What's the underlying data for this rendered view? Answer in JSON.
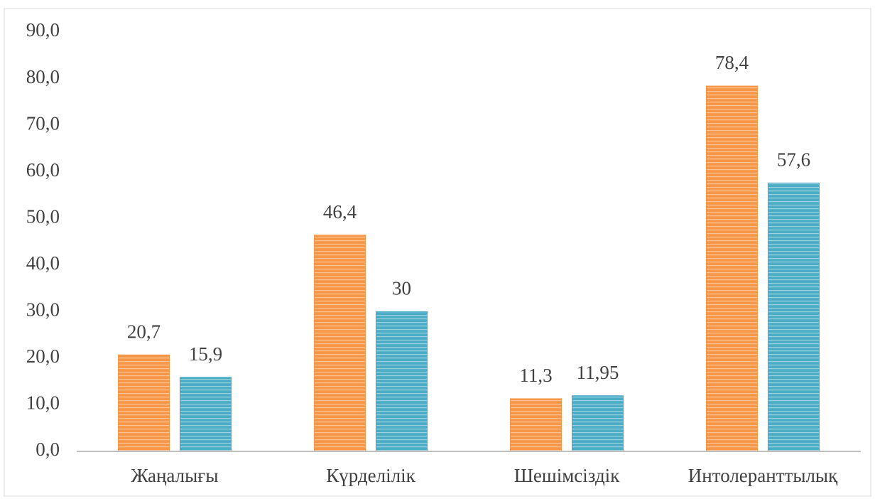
{
  "chart_data": {
    "type": "bar",
    "categories": [
      "Жаңалығы",
      "Күрделілік",
      "Шешімсіздік",
      "Интолеранттылық"
    ],
    "series": [
      {
        "color": "#f79646",
        "values": [
          20.7,
          46.4,
          11.3,
          78.4
        ],
        "value_labels": [
          "20,7",
          "46,4",
          "11,3",
          "78,4"
        ]
      },
      {
        "color": "#4bacc6",
        "values": [
          15.9,
          30,
          11.95,
          57.6
        ],
        "value_labels": [
          "15,9",
          "30",
          "11,95",
          "57,6"
        ]
      }
    ],
    "ylim": [
      0,
      90
    ],
    "yticks": [
      {
        "value": 0,
        "label": "0,0"
      },
      {
        "value": 10,
        "label": "10,0"
      },
      {
        "value": 20,
        "label": "20,0"
      },
      {
        "value": 30,
        "label": "30,0"
      },
      {
        "value": 40,
        "label": "40,0"
      },
      {
        "value": 50,
        "label": "50,0"
      },
      {
        "value": 60,
        "label": "60,0"
      },
      {
        "value": 70,
        "label": "70,0"
      },
      {
        "value": 80,
        "label": "80,0"
      },
      {
        "value": 90,
        "label": "90,0"
      }
    ],
    "grid": false
  }
}
